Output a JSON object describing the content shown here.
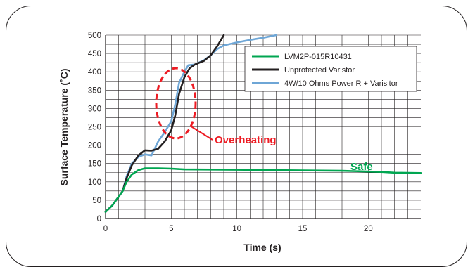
{
  "chart_data": {
    "type": "line",
    "title": "",
    "xlabel": "Time (s)",
    "ylabel": "Surface Temperature (˚C)",
    "xlim": [
      0,
      24
    ],
    "ylim": [
      0,
      500
    ],
    "xticks": [
      0,
      5,
      10,
      15,
      20
    ],
    "yticks": [
      0,
      50,
      100,
      150,
      200,
      250,
      300,
      350,
      400,
      450,
      500
    ],
    "grid": true,
    "legend_position": "top-right",
    "series": [
      {
        "name": "LVM2P-015R10431",
        "color": "#00a651",
        "points": [
          [
            0,
            18
          ],
          [
            0.5,
            35
          ],
          [
            1,
            60
          ],
          [
            1.3,
            75
          ],
          [
            1.6,
            100
          ],
          [
            2,
            120
          ],
          [
            2.5,
            132
          ],
          [
            3,
            137
          ],
          [
            4,
            137
          ],
          [
            5,
            136
          ],
          [
            6,
            134
          ],
          [
            10,
            133
          ],
          [
            15,
            131
          ],
          [
            18,
            130
          ],
          [
            21,
            127
          ],
          [
            22,
            125
          ],
          [
            24,
            124
          ]
        ]
      },
      {
        "name": "Unprotected Varistor",
        "color": "#231f20",
        "points": [
          [
            0,
            18
          ],
          [
            0.5,
            35
          ],
          [
            1,
            60
          ],
          [
            1.3,
            75
          ],
          [
            1.6,
            110
          ],
          [
            2,
            145
          ],
          [
            2.5,
            172
          ],
          [
            3,
            186
          ],
          [
            3.5,
            185
          ],
          [
            4,
            190
          ],
          [
            4.5,
            210
          ],
          [
            5,
            240
          ],
          [
            5.3,
            280
          ],
          [
            5.6,
            340
          ],
          [
            6,
            385
          ],
          [
            6.4,
            410
          ],
          [
            6.8,
            420
          ],
          [
            7.5,
            430
          ],
          [
            8,
            445
          ],
          [
            8.5,
            470
          ],
          [
            9,
            500
          ]
        ]
      },
      {
        "name": "4W/10 Ohms Power R + Varisitor",
        "color": "#6ea6d6",
        "points": [
          [
            0,
            18
          ],
          [
            0.5,
            35
          ],
          [
            1,
            60
          ],
          [
            1.3,
            75
          ],
          [
            1.6,
            115
          ],
          [
            2,
            150
          ],
          [
            2.5,
            168
          ],
          [
            3,
            175
          ],
          [
            3.5,
            172
          ],
          [
            4,
            210
          ],
          [
            4.5,
            235
          ],
          [
            5,
            265
          ],
          [
            5.3,
            310
          ],
          [
            5.6,
            370
          ],
          [
            6,
            400
          ],
          [
            6.3,
            418
          ],
          [
            6.8,
            420
          ],
          [
            7.5,
            432
          ],
          [
            8,
            445
          ],
          [
            8.5,
            462
          ],
          [
            9,
            472
          ],
          [
            10,
            480
          ],
          [
            11,
            487
          ],
          [
            12,
            493
          ],
          [
            13,
            500
          ]
        ]
      }
    ],
    "annotations": [
      {
        "text": "Overheating",
        "color": "#ed1c24"
      },
      {
        "text": "Safe",
        "color": "#00a651"
      }
    ]
  }
}
